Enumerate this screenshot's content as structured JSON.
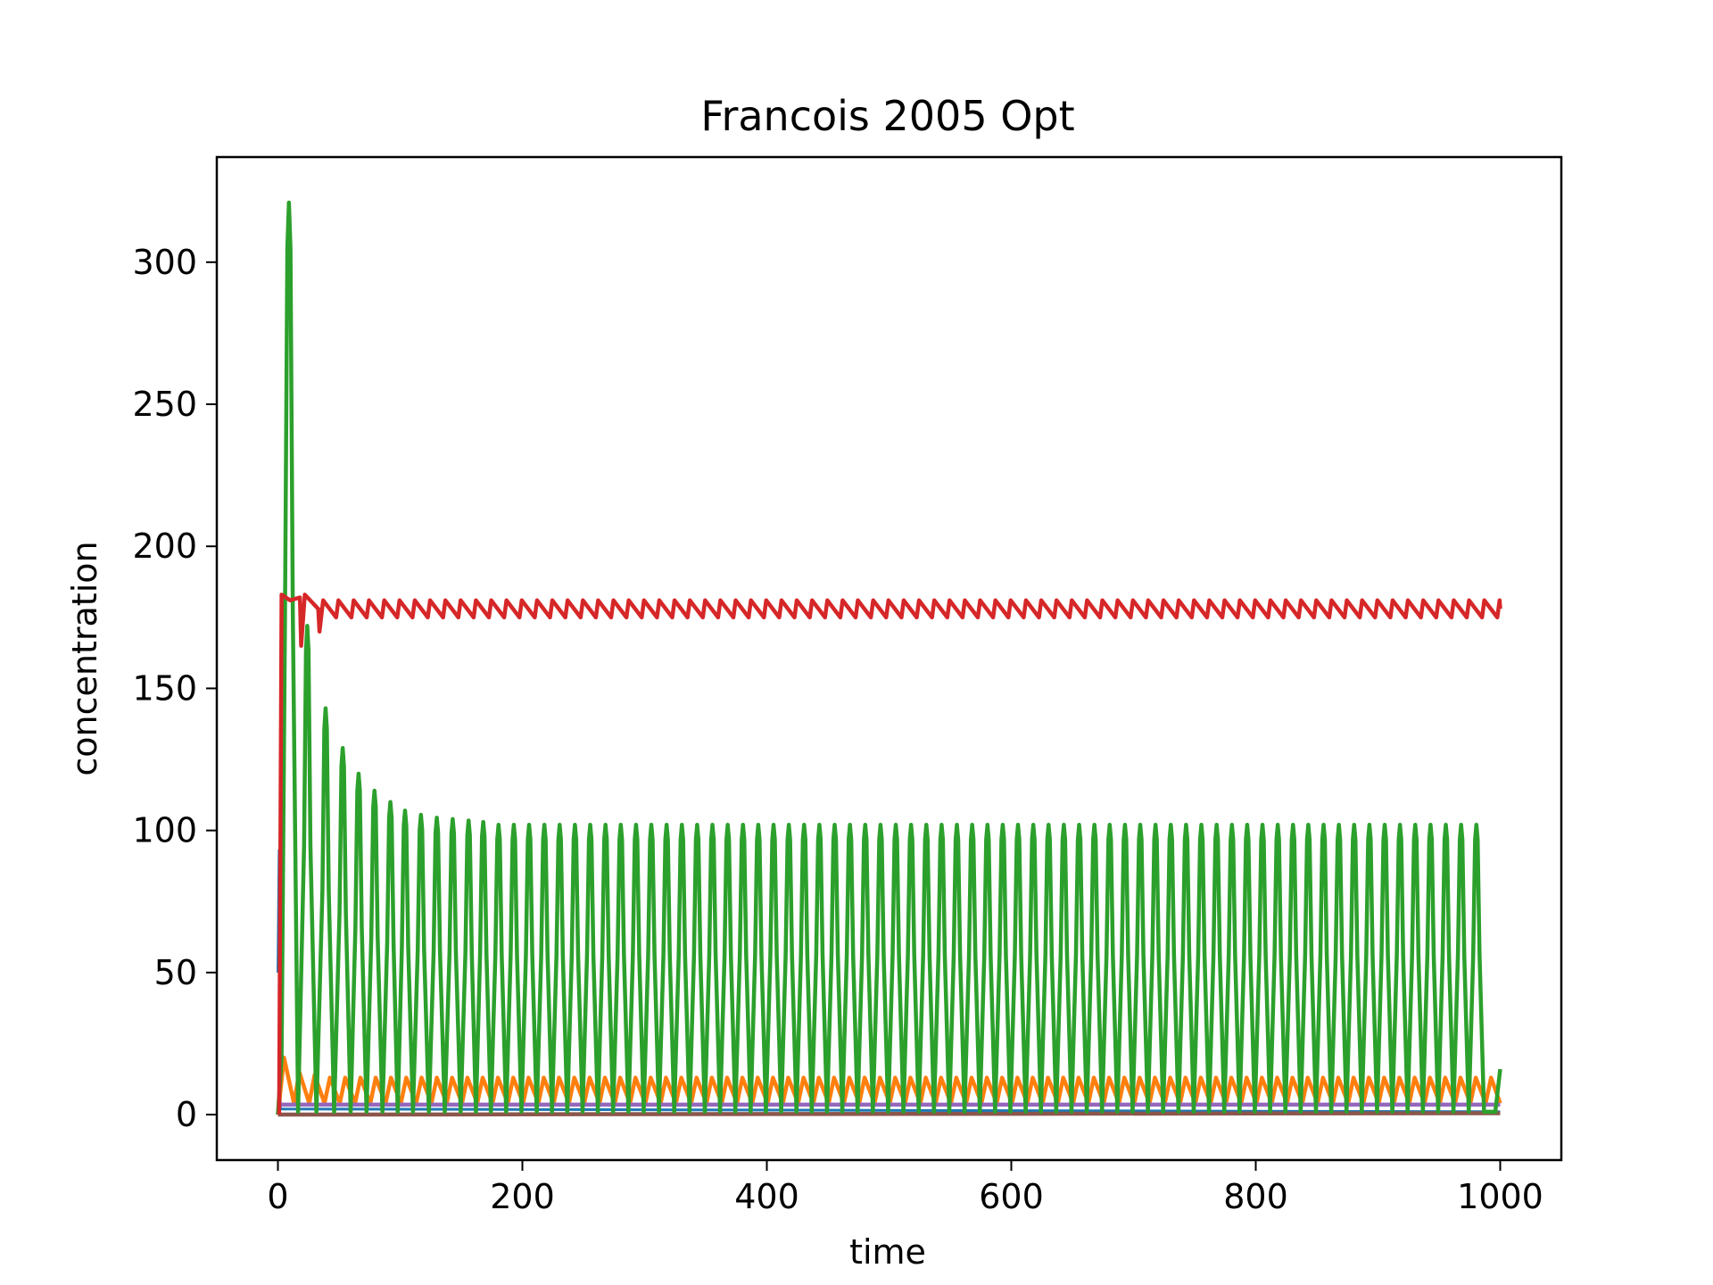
{
  "chart_data": {
    "type": "line",
    "title": "Francois 2005 Opt",
    "xlabel": "time",
    "ylabel": "concentration",
    "xlim": [
      -50,
      1050
    ],
    "ylim": [
      -16,
      337
    ],
    "xticks": [
      0,
      200,
      400,
      600,
      800,
      1000
    ],
    "yticks": [
      0,
      50,
      100,
      150,
      200,
      250,
      300
    ],
    "grid": false,
    "legend": "none",
    "time_range": [
      0,
      1000
    ],
    "series": [
      {
        "color": "#1f77b4",
        "description": "rises from 50 to ~93 at t≈0 then drops to ~0",
        "points": [
          [
            0,
            50
          ],
          [
            1,
            93
          ],
          [
            2,
            2
          ],
          [
            1000,
            1
          ]
        ]
      },
      {
        "color": "#ff7f0e",
        "initial_peak": 20,
        "initial_peak_t": 5,
        "oscillation_max": 13,
        "oscillation_min": 4,
        "period": 12.5
      },
      {
        "color": "#2ca02c",
        "initial_peak": 321,
        "initial_peak_t": 9,
        "peaks": [
          [
            9,
            321
          ],
          [
            24,
            172
          ],
          [
            39,
            143
          ],
          [
            53,
            129
          ],
          [
            66,
            120
          ],
          [
            79,
            114
          ],
          [
            92,
            110
          ],
          [
            104,
            107
          ],
          [
            117,
            105.5
          ],
          [
            130,
            104.5
          ],
          [
            143,
            104
          ],
          [
            156,
            103.5
          ],
          [
            168,
            103
          ]
        ],
        "steady_peak": 102,
        "trough": 1,
        "period": 12.5,
        "end_value": 16
      },
      {
        "color": "#d62728",
        "initial_peak": 183,
        "initial_peak_t": 3,
        "dips": [
          [
            19,
            165
          ],
          [
            34,
            170
          ]
        ],
        "oscillation_max": 181,
        "oscillation_min": 175,
        "period": 12.5
      },
      {
        "color": "#9467bd",
        "value": 3.5
      },
      {
        "color": "#8c564b",
        "value": 0.5
      }
    ]
  }
}
